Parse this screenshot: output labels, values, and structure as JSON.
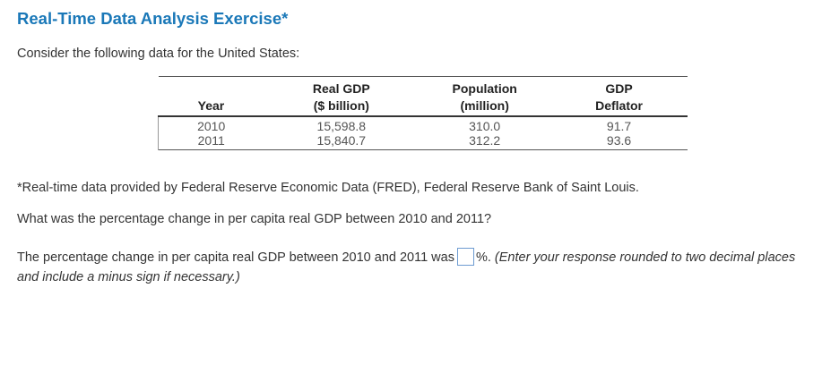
{
  "title": "Real-Time Data Analysis Exercise*",
  "intro": "Consider the following data for the United States:",
  "table": {
    "headers": {
      "year": "Year",
      "real_gdp_line1": "Real GDP",
      "real_gdp_line2": "($ billion)",
      "population_line1": "Population",
      "population_line2": "(million)",
      "deflator_line1": "GDP",
      "deflator_line2": "Deflator"
    },
    "rows": [
      {
        "year": "2010",
        "real_gdp": "15,598.8",
        "population": "310.0",
        "deflator": "91.7"
      },
      {
        "year": "2011",
        "real_gdp": "15,840.7",
        "population": "312.2",
        "deflator": "93.6"
      }
    ]
  },
  "footnote": "*Real-time data provided by Federal Reserve Economic Data (FRED), Federal Reserve Bank of Saint Louis.",
  "question": "What was the percentage change in per capita real GDP between 2010 and 2011?",
  "answer": {
    "prefix": "The percentage change in per capita real GDP between 2010 and 2011 was",
    "value": "",
    "suffix": "%.",
    "instruction": "(Enter your response rounded to two decimal places and include a minus sign if necessary.)"
  }
}
